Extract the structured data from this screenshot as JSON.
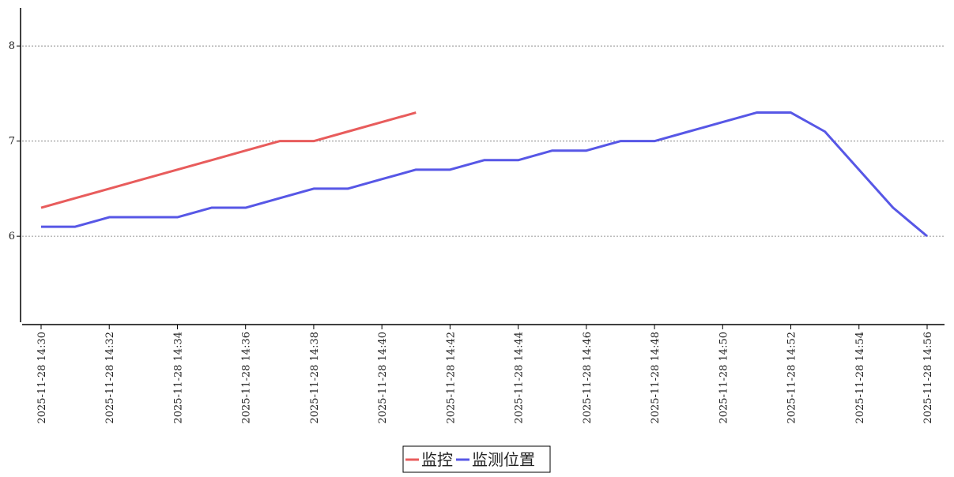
{
  "chart_data": {
    "type": "line",
    "categories": [
      "2025-11-28 14:30",
      null,
      "2025-11-28 14:32",
      null,
      "2025-11-28 14:34",
      null,
      "2025-11-28 14:36",
      null,
      "2025-11-28 14:38",
      null,
      "2025-11-28 14:40",
      null,
      "2025-11-28 14:42",
      null,
      "2025-11-28 14:44",
      null,
      "2025-11-28 14:46",
      null,
      "2025-11-28 14:48",
      null,
      "2025-11-28 14:50",
      null,
      "2025-11-28 14:52",
      null,
      "2025-11-28 14:54",
      null,
      "2025-11-28 14:56"
    ],
    "series": [
      {
        "name": "监控",
        "color": "#e85c5c",
        "values": [
          6.3,
          6.4,
          6.5,
          6.6,
          6.7,
          6.8,
          6.9,
          7.0,
          7.0,
          7.1,
          7.2,
          7.3,
          null,
          null,
          null,
          null,
          null,
          null,
          null,
          null,
          null,
          null,
          null,
          null,
          null,
          null,
          null
        ]
      },
      {
        "name": "监测位置",
        "color": "#5757e6",
        "values": [
          6.1,
          6.1,
          6.2,
          6.2,
          6.2,
          6.3,
          6.3,
          6.4,
          6.5,
          6.5,
          6.6,
          6.7,
          6.7,
          6.8,
          6.8,
          6.9,
          6.9,
          7.0,
          7.0,
          7.1,
          7.2,
          7.3,
          7.3,
          7.1,
          6.7,
          6.3,
          6.0
        ]
      }
    ],
    "ylim": [
      5.08,
      8.4
    ],
    "yticks": [
      6,
      7,
      8
    ],
    "grid": true,
    "legend": "bottom"
  }
}
